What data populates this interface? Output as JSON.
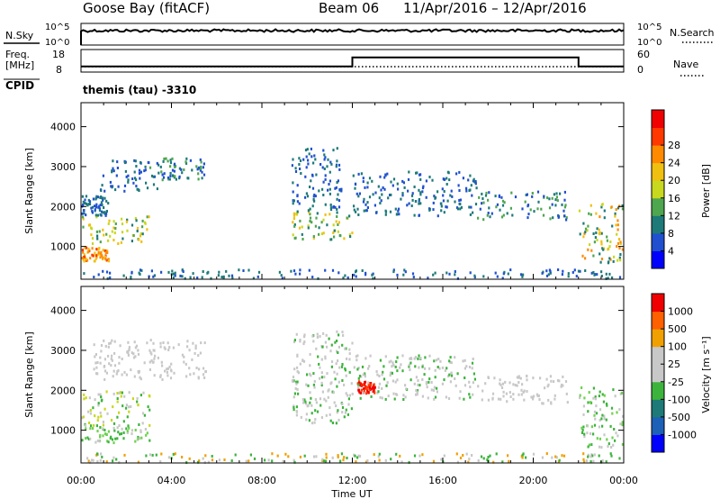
{
  "header": {
    "station": "Goose Bay (fitACF)",
    "beam": "Beam 06",
    "dates": "11/Apr/2016 – 12/Apr/2016",
    "cpid_label": "CPID",
    "cpid_value": "themis (tau) -3310"
  },
  "colors": {
    "black": "#000000",
    "ground_scatter": "#c8c8c8"
  },
  "chart_data": [
    {
      "type": "line",
      "name": "noise-panel",
      "left_label": "N.Sky",
      "right_label": "N.Search",
      "left_ticks": [
        "10^5",
        "10^0"
      ],
      "right_ticks": [
        "10^5",
        "10^0"
      ]
    },
    {
      "type": "line",
      "name": "frequency-panel",
      "left_label_lines": [
        "Freq.",
        "[MHz]"
      ],
      "right_label": "Nave",
      "left_ticks": [
        "18",
        "8"
      ],
      "right_ticks": [
        "60",
        "0"
      ],
      "freq_steps": [
        {
          "x": 0,
          "y": 10.5
        },
        {
          "x": 12.0,
          "y": 10.5
        },
        {
          "x": 12.0,
          "y": 14.5
        },
        {
          "x": 22.0,
          "y": 14.5
        },
        {
          "x": 22.0,
          "y": 10.5
        },
        {
          "x": 24.0,
          "y": 10.5
        }
      ]
    },
    {
      "type": "heatmap",
      "name": "power",
      "ylabel": "Slant Range [km]",
      "y_ticks": [
        1000,
        2000,
        3000,
        4000
      ],
      "ylim": [
        180,
        4600
      ],
      "colorbar_label": "Power [dB]",
      "colorbar_ticks": [
        "4",
        "8",
        "12",
        "16",
        "20",
        "24",
        "28"
      ],
      "colorbar_colors": [
        "#0000ff",
        "#2050d0",
        "#1d7a78",
        "#4ea64e",
        "#c8d81e",
        "#f0c010",
        "#ff8a00",
        "#ff3800",
        "#f00000"
      ],
      "regions": [
        {
          "t": [
            0.0,
            1.3
          ],
          "r": [
            650,
            1000
          ],
          "colors": [
            "#ff8a00",
            "#ff3800",
            "#f0c010"
          ]
        },
        {
          "t": [
            0.0,
            3.0
          ],
          "r": [
            1100,
            1800
          ],
          "colors": [
            "#4ea64e",
            "#c8d81e",
            "#1d7a78",
            "#f0c010"
          ]
        },
        {
          "t": [
            0.0,
            1.2
          ],
          "r": [
            1800,
            2300
          ],
          "colors": [
            "#2050d0",
            "#1d7a78"
          ]
        },
        {
          "t": [
            0.8,
            3.5
          ],
          "r": [
            2400,
            3200
          ],
          "colors": [
            "#2050d0",
            "#1d7a78"
          ]
        },
        {
          "t": [
            3.0,
            5.5
          ],
          "r": [
            2700,
            3250
          ],
          "colors": [
            "#2050d0",
            "#1d7a78",
            "#4ea64e"
          ]
        },
        {
          "t": [
            9.3,
            12.0
          ],
          "r": [
            1200,
            1900
          ],
          "colors": [
            "#4ea64e",
            "#c8d81e",
            "#1d7a78",
            "#f0c010"
          ]
        },
        {
          "t": [
            9.3,
            11.5
          ],
          "r": [
            1900,
            3500
          ],
          "colors": [
            "#2050d0",
            "#1d7a78"
          ]
        },
        {
          "t": [
            12.0,
            17.5
          ],
          "r": [
            1800,
            2900
          ],
          "colors": [
            "#2050d0",
            "#1d7a78"
          ]
        },
        {
          "t": [
            17.5,
            21.5
          ],
          "r": [
            1700,
            2400
          ],
          "colors": [
            "#2050d0",
            "#1d7a78",
            "#4ea64e"
          ]
        },
        {
          "t": [
            22.0,
            24.0
          ],
          "r": [
            600,
            2100
          ],
          "colors": [
            "#4ea64e",
            "#c8d81e",
            "#f0c010",
            "#ff8a00",
            "#1d7a78"
          ]
        },
        {
          "t": [
            0.0,
            24.0
          ],
          "r": [
            200,
            450
          ],
          "colors": [
            "#2050d0",
            "#1d7a78"
          ]
        }
      ]
    },
    {
      "type": "heatmap",
      "name": "velocity",
      "ylabel": "Slant Range [km]",
      "y_ticks": [
        1000,
        2000,
        3000,
        4000
      ],
      "ylim": [
        180,
        4600
      ],
      "xlabel": "Time UT",
      "x_ticks": [
        "00:00",
        "04:00",
        "08:00",
        "12:00",
        "16:00",
        "20:00",
        "00:00"
      ],
      "xlim": [
        0,
        24
      ],
      "colorbar_label": "Velocity [m s⁻¹]",
      "colorbar_ticks": [
        "1000",
        "500",
        "100",
        "25",
        "-25",
        "-100",
        "-500",
        "-1000"
      ],
      "colorbar_colors": [
        "#0000ff",
        "#1d60b8",
        "#1d7a78",
        "#3cb43c",
        "#c8c8c8",
        "#c8c8c8",
        "#f0a000",
        "#ff6000",
        "#f00000"
      ],
      "regions": [
        {
          "t": [
            0.0,
            3.0
          ],
          "r": [
            700,
            1100
          ],
          "colors": [
            "#3cb43c",
            "#6ed24e",
            "#c8c8c8"
          ]
        },
        {
          "t": [
            0.0,
            3.0
          ],
          "r": [
            1100,
            2000
          ],
          "colors": [
            "#c8c8c8",
            "#3cb43c",
            "#c8d81e"
          ]
        },
        {
          "t": [
            0.5,
            5.5
          ],
          "r": [
            2300,
            3300
          ],
          "colors": [
            "#c8c8c8"
          ]
        },
        {
          "t": [
            9.3,
            12.0
          ],
          "r": [
            1200,
            3500
          ],
          "colors": [
            "#c8c8c8",
            "#c8c8c8",
            "#3cb43c"
          ]
        },
        {
          "t": [
            12.2,
            13.0
          ],
          "r": [
            1950,
            2250
          ],
          "colors": [
            "#ff3800",
            "#f00000"
          ]
        },
        {
          "t": [
            12.0,
            17.5
          ],
          "r": [
            1800,
            2900
          ],
          "colors": [
            "#c8c8c8",
            "#c8c8c8",
            "#3cb43c"
          ]
        },
        {
          "t": [
            17.5,
            21.5
          ],
          "r": [
            1700,
            2400
          ],
          "colors": [
            "#c8c8c8"
          ]
        },
        {
          "t": [
            22.0,
            24.0
          ],
          "r": [
            600,
            2100
          ],
          "colors": [
            "#c8c8c8",
            "#3cb43c",
            "#6ed24e"
          ]
        },
        {
          "t": [
            0.0,
            24.0
          ],
          "r": [
            200,
            450
          ],
          "colors": [
            "#c8c8c8",
            "#f0a000",
            "#3cb43c"
          ]
        }
      ]
    }
  ]
}
